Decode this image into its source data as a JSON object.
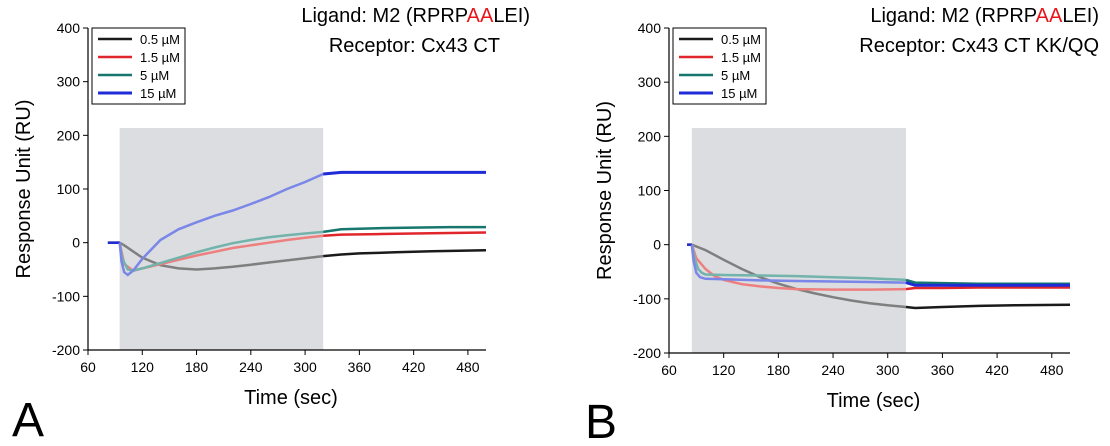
{
  "chart_data": [
    {
      "type": "line",
      "panel_label": "A",
      "title_lines": {
        "ligand_prefix": "Ligand: M2 (RPRP",
        "ligand_highlight": "AA",
        "ligand_suffix": "LEI)",
        "receptor": "Receptor: Cx43 CT"
      },
      "highlight_color": "#e8141a",
      "xlabel": "Time (sec)",
      "ylabel": "Response Unit (RU)",
      "xlim": [
        60,
        500
      ],
      "ylim": [
        -200,
        400
      ],
      "xticks": [
        "60",
        "120",
        "180",
        "240",
        "300",
        "360",
        "420",
        "480"
      ],
      "yticks": [
        "-200",
        "-100",
        "0",
        "100",
        "200",
        "300",
        "400"
      ],
      "injection_window": [
        95,
        320
      ],
      "legend_position": "top-left",
      "series": [
        {
          "name": "0.5 µM",
          "color": "#1a1a1a",
          "light_color": "#7f7f7f",
          "x": [
            82,
            95,
            100,
            120,
            140,
            160,
            180,
            200,
            220,
            240,
            260,
            280,
            300,
            320,
            340,
            360,
            400,
            440,
            500
          ],
          "y": [
            0,
            0,
            -5,
            -28,
            -42,
            -48,
            -50,
            -48,
            -45,
            -41,
            -37,
            -33,
            -29,
            -25,
            -22,
            -20,
            -18,
            -16,
            -14
          ]
        },
        {
          "name": "1.5 µM",
          "color": "#e0262b",
          "light_color": "#ee7f7f",
          "x": [
            82,
            95,
            100,
            110,
            120,
            140,
            160,
            180,
            200,
            220,
            240,
            260,
            280,
            300,
            320,
            340,
            380,
            420,
            460,
            500
          ],
          "y": [
            0,
            0,
            -40,
            -52,
            -48,
            -40,
            -32,
            -24,
            -17,
            -10,
            -5,
            0,
            5,
            9,
            13,
            15,
            16,
            17,
            18,
            19
          ]
        },
        {
          "name": "5 µM",
          "color": "#17766e",
          "light_color": "#72b3ab",
          "x": [
            82,
            95,
            98,
            104,
            110,
            120,
            140,
            160,
            180,
            200,
            220,
            240,
            260,
            280,
            300,
            320,
            340,
            380,
            420,
            460,
            500
          ],
          "y": [
            0,
            0,
            -30,
            -50,
            -52,
            -48,
            -38,
            -28,
            -18,
            -9,
            -1,
            5,
            10,
            14,
            17,
            20,
            25,
            27,
            28,
            29,
            29
          ]
        },
        {
          "name": "15 µM",
          "color": "#1f2bd6",
          "light_color": "#7a86e8",
          "x": [
            82,
            95,
            97,
            100,
            104,
            110,
            120,
            140,
            160,
            180,
            200,
            220,
            240,
            260,
            280,
            300,
            320,
            340,
            380,
            420,
            460,
            500
          ],
          "y": [
            0,
            0,
            -35,
            -55,
            -60,
            -52,
            -30,
            5,
            25,
            38,
            50,
            60,
            72,
            85,
            100,
            113,
            128,
            131,
            131,
            131,
            131,
            131
          ]
        }
      ]
    },
    {
      "type": "line",
      "panel_label": "B",
      "title_lines": {
        "ligand_prefix": "Ligand: M2 (RPRP",
        "ligand_highlight": "AA",
        "ligand_suffix": "LEI)",
        "receptor": "Receptor: Cx43 CT KK/QQ"
      },
      "highlight_color": "#e8141a",
      "xlabel": "Time (sec)",
      "ylabel": "Response Unit (RU)",
      "xlim": [
        60,
        500
      ],
      "ylim": [
        -200,
        400
      ],
      "xticks": [
        "60",
        "120",
        "180",
        "240",
        "300",
        "360",
        "420",
        "480"
      ],
      "yticks": [
        "-200",
        "-100",
        "0",
        "100",
        "200",
        "300",
        "400"
      ],
      "injection_window": [
        85,
        320
      ],
      "legend_position": "top-left",
      "series": [
        {
          "name": "0.5 µM",
          "color": "#1a1a1a",
          "light_color": "#7f7f7f",
          "x": [
            80,
            85,
            100,
            120,
            140,
            160,
            180,
            200,
            220,
            240,
            260,
            280,
            300,
            320,
            330,
            360,
            400,
            440,
            500
          ],
          "y": [
            0,
            0,
            -10,
            -28,
            -45,
            -60,
            -72,
            -82,
            -90,
            -97,
            -103,
            -108,
            -112,
            -115,
            -117,
            -115,
            -113,
            -112,
            -111
          ]
        },
        {
          "name": "1.5 µM",
          "color": "#e0262b",
          "light_color": "#ee7f7f",
          "x": [
            80,
            85,
            90,
            100,
            110,
            120,
            140,
            160,
            180,
            200,
            240,
            280,
            320,
            330,
            360,
            400,
            440,
            500
          ],
          "y": [
            0,
            0,
            -25,
            -45,
            -58,
            -65,
            -73,
            -77,
            -80,
            -82,
            -83,
            -83,
            -82,
            -80,
            -80,
            -79,
            -79,
            -79
          ]
        },
        {
          "name": "5 µM",
          "color": "#17766e",
          "light_color": "#72b3ab",
          "x": [
            80,
            85,
            88,
            92,
            96,
            100,
            120,
            160,
            200,
            240,
            280,
            320,
            330,
            360,
            400,
            440,
            500
          ],
          "y": [
            0,
            0,
            -25,
            -45,
            -52,
            -55,
            -56,
            -57,
            -58,
            -60,
            -62,
            -65,
            -70,
            -71,
            -72,
            -72,
            -72
          ]
        },
        {
          "name": "15 µM",
          "color": "#1f2bd6",
          "light_color": "#7a86e8",
          "x": [
            80,
            85,
            87,
            90,
            94,
            100,
            120,
            160,
            200,
            240,
            280,
            320,
            330,
            360,
            400,
            440,
            500
          ],
          "y": [
            0,
            0,
            -30,
            -52,
            -60,
            -63,
            -64,
            -66,
            -67,
            -68,
            -69,
            -70,
            -75,
            -75,
            -75,
            -75,
            -75
          ]
        }
      ]
    }
  ]
}
